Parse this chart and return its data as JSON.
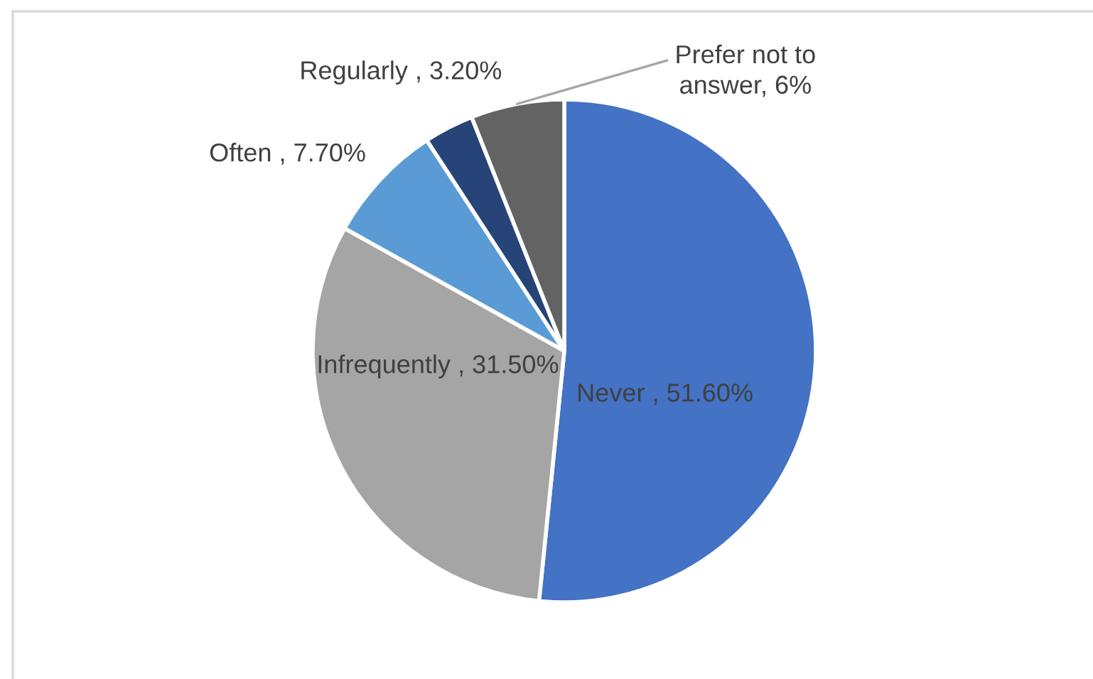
{
  "chart_data": {
    "type": "pie",
    "categories": [
      "Never",
      "Infrequently",
      "Often",
      "Regularly",
      "Prefer not to answer"
    ],
    "values": [
      51.6,
      31.5,
      7.7,
      3.2,
      6
    ],
    "colors": [
      "#4472c4",
      "#a5a5a5",
      "#5b9bd5",
      "#264478",
      "#636363"
    ],
    "value_labels": [
      "51.60%",
      "31.50%",
      "7.70%",
      "3.20%",
      "6%"
    ]
  }
}
